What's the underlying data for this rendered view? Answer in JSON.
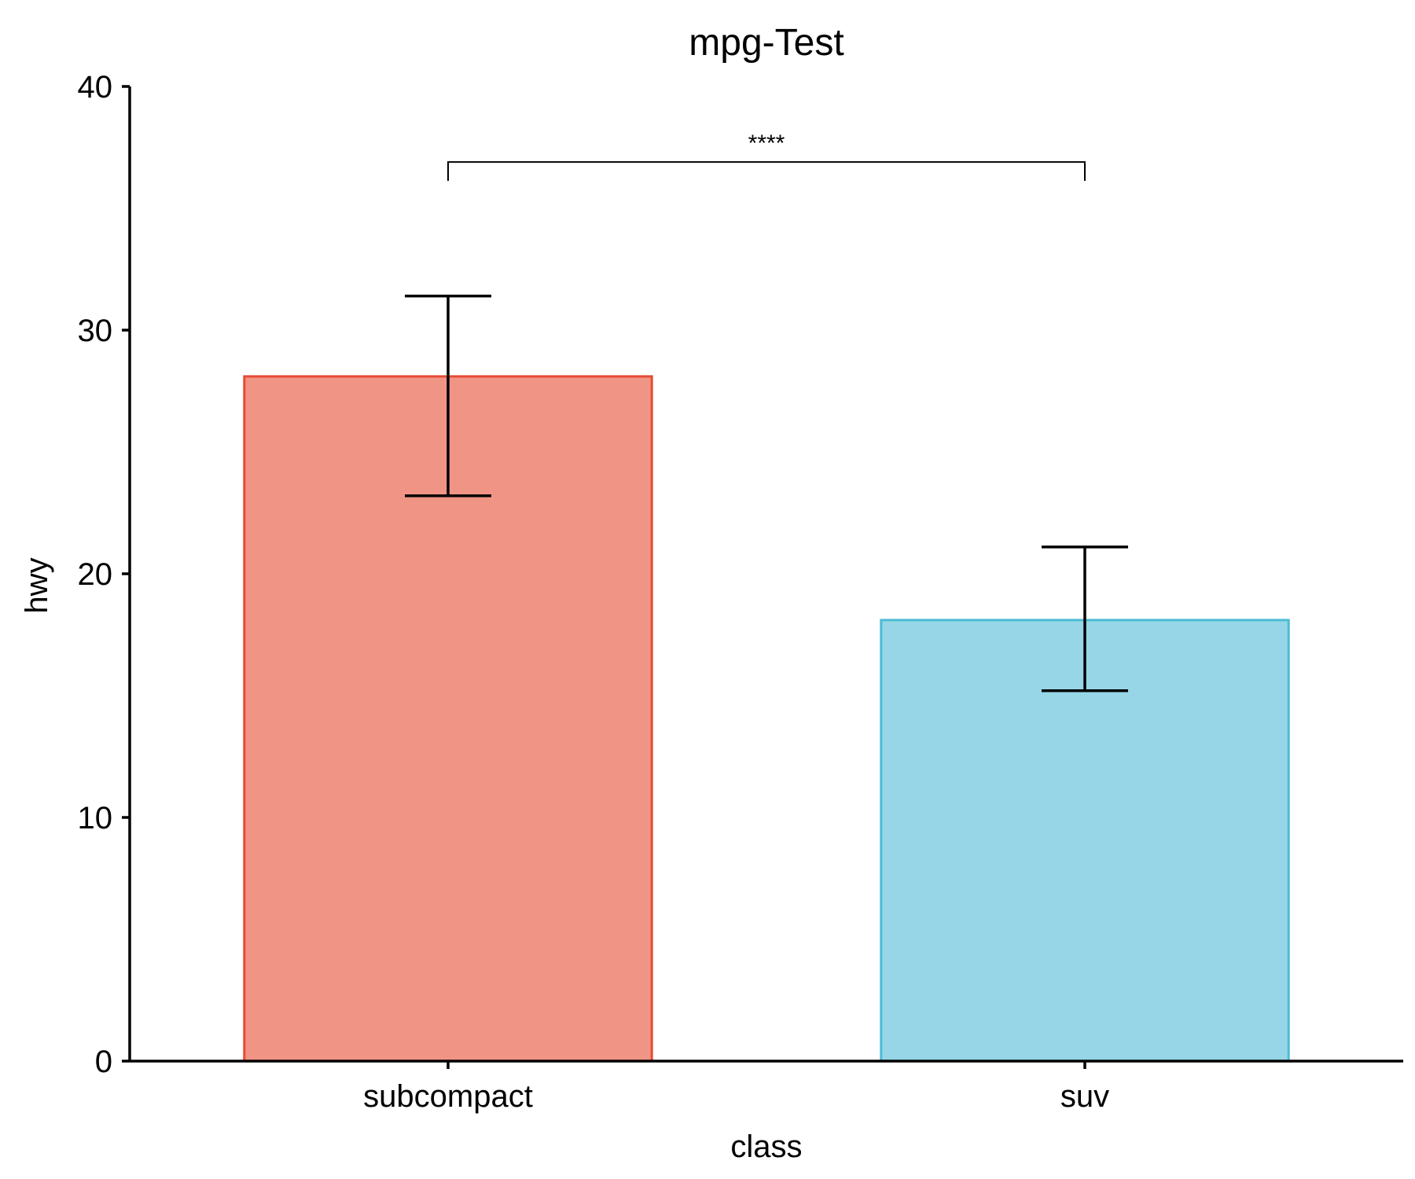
{
  "chart_data": {
    "type": "bar",
    "title": "mpg-Test",
    "xlabel": "class",
    "ylabel": "hwy",
    "categories": [
      "subcompact",
      "suv"
    ],
    "values": [
      28.1,
      18.1
    ],
    "error_bars": [
      {
        "low": 23.2,
        "high": 31.4
      },
      {
        "low": 15.2,
        "high": 21.1
      }
    ],
    "ylim": [
      0,
      40
    ],
    "yticks": [
      0,
      10,
      20,
      30,
      40
    ],
    "grid": false,
    "legend": "none",
    "colors": {
      "fills": [
        "#F09585",
        "#96D6E6"
      ],
      "strokes": [
        "#E64B35",
        "#4DBBD5"
      ],
      "axis": "#000000"
    },
    "annotations": [
      {
        "type": "significance",
        "label": "****",
        "from": "subcompact",
        "to": "suv",
        "y": 36.9
      }
    ]
  }
}
